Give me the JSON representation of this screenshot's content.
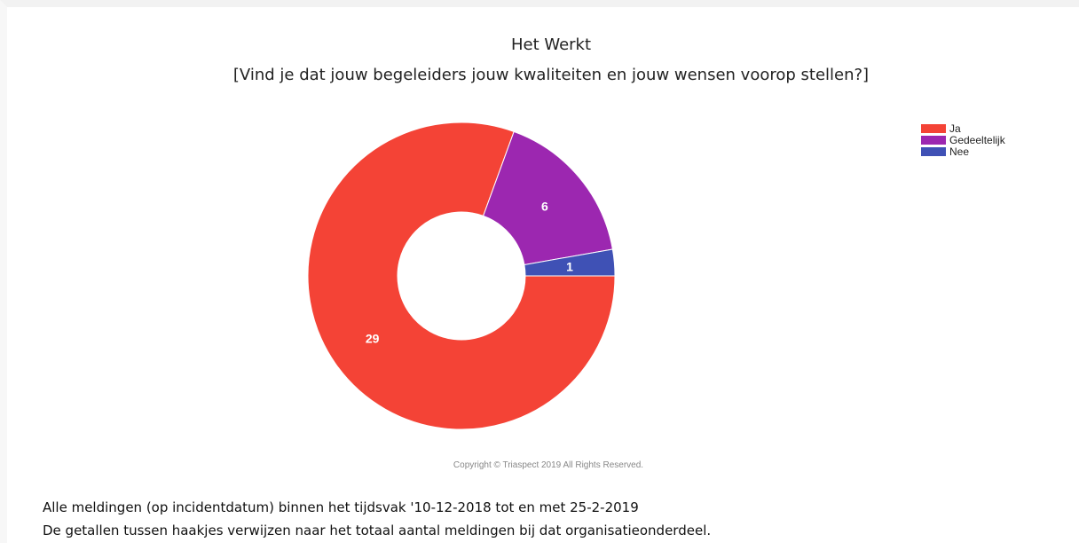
{
  "chart_data": {
    "type": "pie",
    "title": "Het Werkt",
    "subtitle": "[Vind je dat jouw begeleiders jouw kwaliteiten en jouw wensen voorop stellen?]",
    "categories": [
      "Ja",
      "Gedeeltelijk",
      "Nee"
    ],
    "values": [
      29,
      6,
      1
    ],
    "colors": [
      "#f44336",
      "#9c27b0",
      "#3f51b5"
    ],
    "donut": true,
    "legend": "right"
  },
  "copyright": "Copyright © Triaspect 2019 All Rights Reserved.",
  "notes": [
    "Alle meldingen (op incidentdatum) binnen het tijdsvak '10-12-2018 tot en met 25-2-2019",
    "De getallen tussen haakjes verwijzen naar het totaal aantal meldingen bij dat organisatieonderdeel."
  ]
}
